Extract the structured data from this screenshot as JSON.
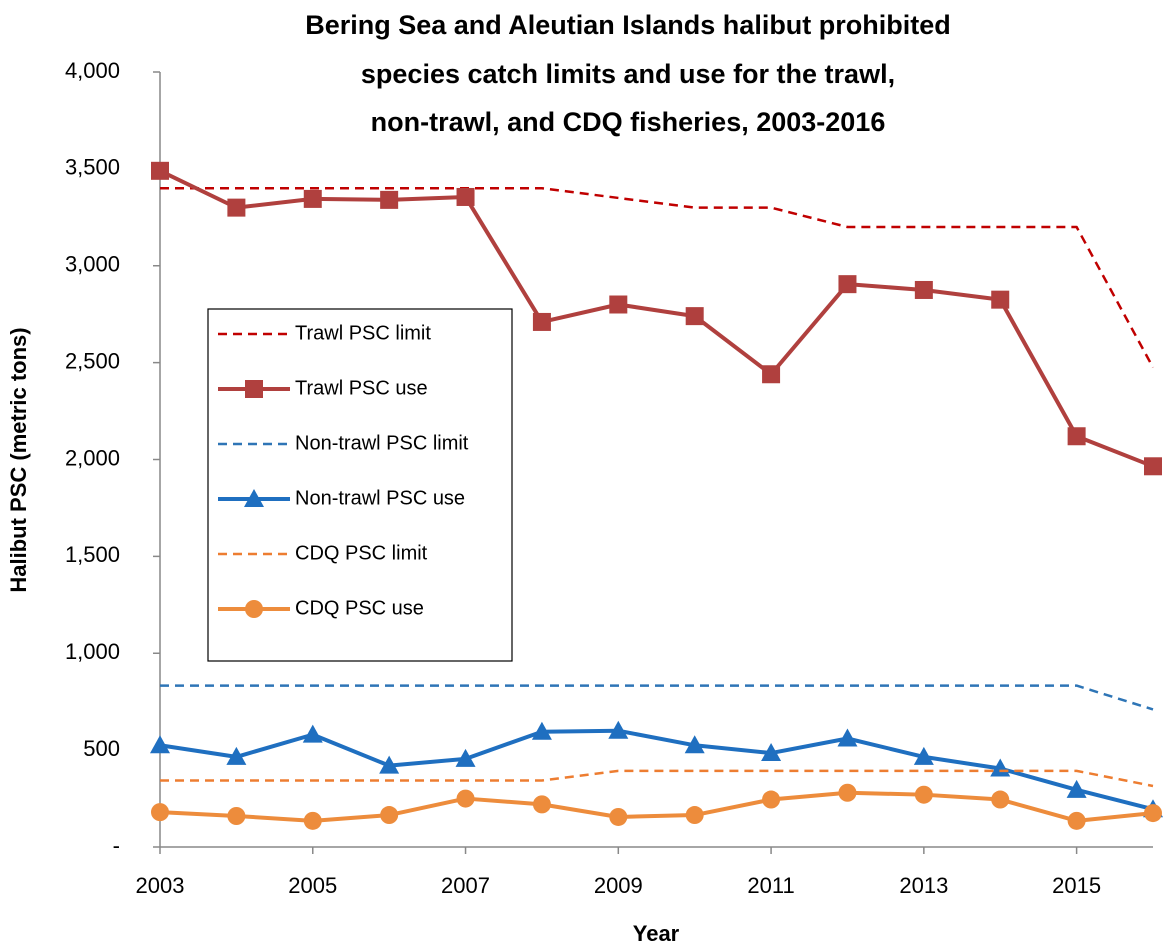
{
  "chart_data": {
    "type": "line",
    "title": [
      "Bering Sea and Aleutian Islands halibut prohibited",
      "species catch limits and use for the trawl,",
      "non-trawl, and CDQ fisheries, 2003-2016"
    ],
    "xlabel": "Year",
    "ylabel": "Halibut PSC (metric tons)",
    "x": [
      2003,
      2004,
      2005,
      2006,
      2007,
      2008,
      2009,
      2010,
      2011,
      2012,
      2013,
      2014,
      2015,
      2016
    ],
    "xlim": [
      2003,
      2016
    ],
    "xticks": [
      2003,
      2005,
      2007,
      2009,
      2011,
      2013,
      2015
    ],
    "ylim": [
      0,
      4000
    ],
    "yticks": [
      {
        "value": 0,
        "label": "-"
      },
      500,
      {
        "value": 1000,
        "label": "1,000"
      },
      {
        "value": 1500,
        "label": "1,500"
      },
      {
        "value": 2000,
        "label": "2,000"
      },
      {
        "value": 2500,
        "label": "2,500"
      },
      {
        "value": 3000,
        "label": "3,000"
      },
      {
        "value": 3500,
        "label": "3,500"
      },
      {
        "value": 4000,
        "label": "4,000"
      }
    ],
    "grid": false,
    "legend": "left",
    "series": [
      {
        "name": "Trawl PSC limit",
        "color": "#c00000",
        "style": "dashed",
        "marker": null,
        "values": [
          3400,
          3400,
          3400,
          3400,
          3400,
          3400,
          3350,
          3300,
          3300,
          3200,
          3200,
          3200,
          3200,
          2475
        ]
      },
      {
        "name": "Trawl PSC use",
        "color": "#b0403e",
        "style": "solid",
        "marker": "square",
        "values": [
          3490,
          3300,
          3345,
          3340,
          3355,
          2710,
          2800,
          2740,
          2440,
          2905,
          2875,
          2825,
          2120,
          1965
        ]
      },
      {
        "name": "Non-trawl PSC limit",
        "color": "#2e75b6",
        "style": "dashed",
        "marker": null,
        "values": [
          833,
          833,
          833,
          833,
          833,
          833,
          833,
          833,
          833,
          833,
          833,
          833,
          833,
          710
        ]
      },
      {
        "name": "Non-trawl PSC use",
        "color": "#1f6fc0",
        "style": "solid",
        "marker": "triangle",
        "values": [
          525,
          465,
          580,
          420,
          455,
          595,
          600,
          525,
          485,
          560,
          465,
          405,
          295,
          195
        ]
      },
      {
        "name": "CDQ PSC limit",
        "color": "#ed7d31",
        "style": "dashed",
        "marker": null,
        "values": [
          343,
          343,
          343,
          343,
          343,
          343,
          393,
          393,
          393,
          393,
          393,
          393,
          393,
          315
        ]
      },
      {
        "name": "CDQ PSC use",
        "color": "#ed8c3c",
        "style": "solid",
        "marker": "circle",
        "values": [
          180,
          160,
          135,
          165,
          250,
          220,
          155,
          165,
          245,
          280,
          270,
          245,
          135,
          175
        ]
      }
    ]
  }
}
